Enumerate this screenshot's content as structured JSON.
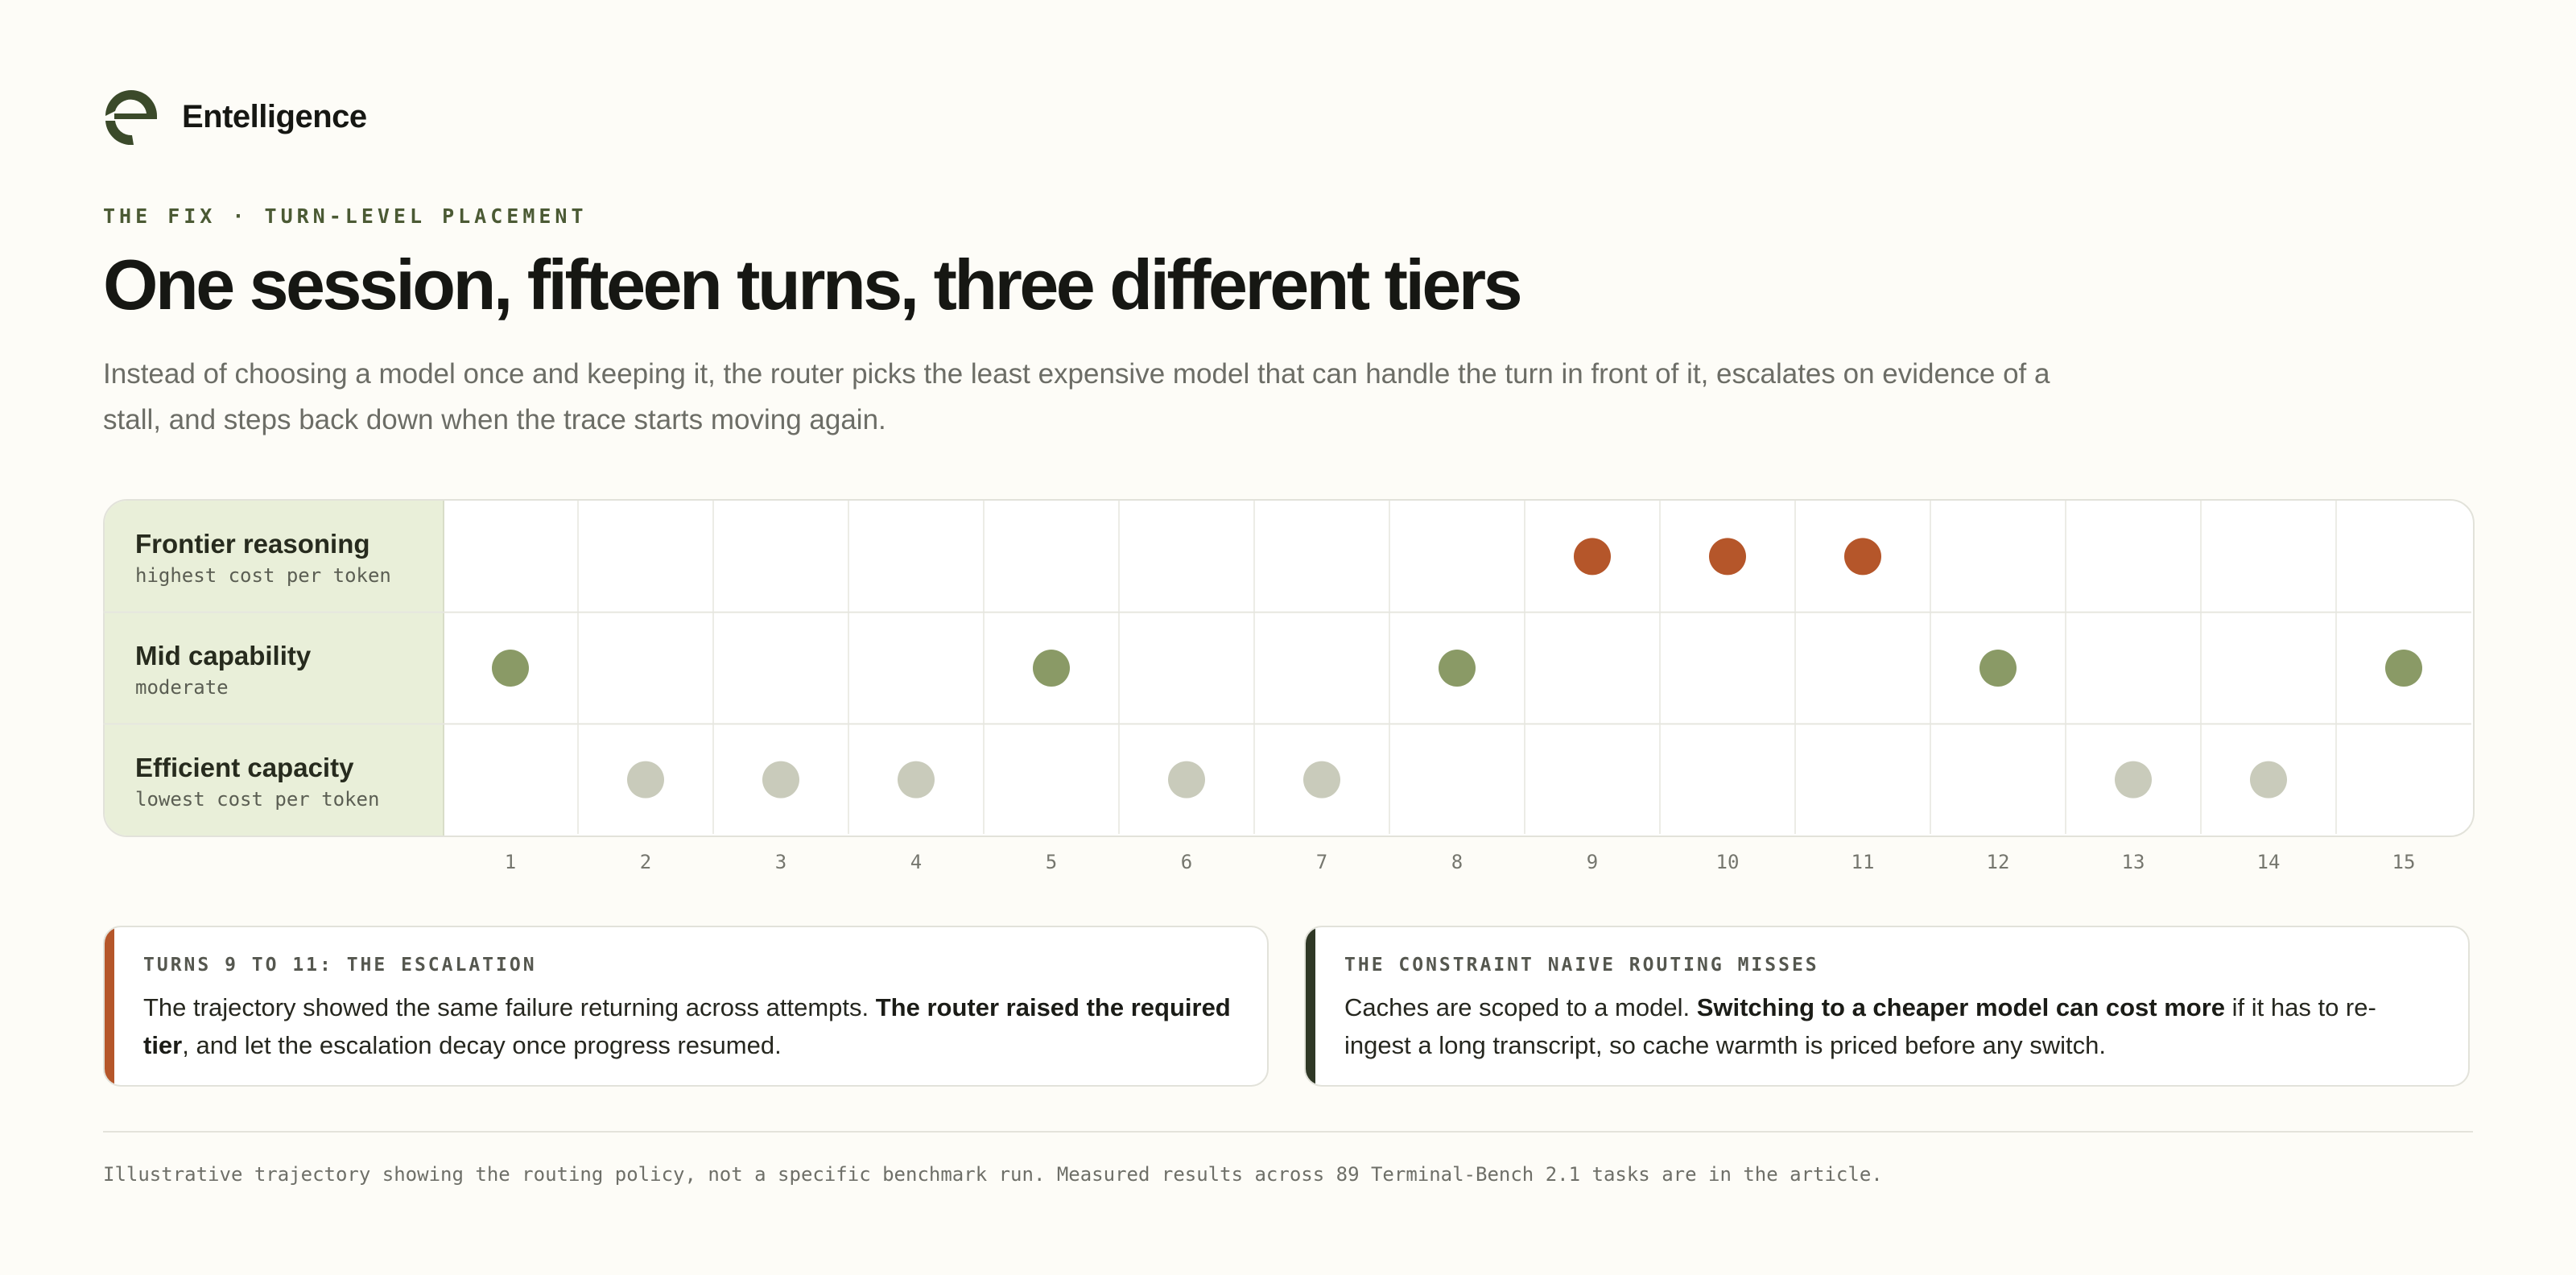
{
  "brand": {
    "name": "Entelligence",
    "logo_icon": "entelligence-e-logo-icon",
    "logo_color": "#3b4a2a"
  },
  "eyebrow": "THE FIX · TURN-LEVEL PLACEMENT",
  "title": "One session, fifteen turns, three different tiers",
  "subtitle": "Instead of choosing a model once and keeping it, the router picks the least expensive model that can handle the turn in front of it, escalates on evidence of a stall, and steps back down when the trace starts moving again.",
  "chart_data": {
    "type": "scatter",
    "title": "",
    "xlabel": "",
    "ylabel": "",
    "x": [
      1,
      2,
      3,
      4,
      5,
      6,
      7,
      8,
      9,
      10,
      11,
      12,
      13,
      14,
      15
    ],
    "tiers": [
      {
        "name": "Frontier reasoning",
        "description": "highest cost per token",
        "color": "#b5562a"
      },
      {
        "name": "Mid capability",
        "description": "moderate",
        "color": "#8a9a66"
      },
      {
        "name": "Efficient capacity",
        "description": "lowest cost per token",
        "color": "#c9cbbb"
      }
    ],
    "turn_tier": [
      "Mid capability",
      "Efficient capacity",
      "Efficient capacity",
      "Efficient capacity",
      "Mid capability",
      "Efficient capacity",
      "Efficient capacity",
      "Mid capability",
      "Frontier reasoning",
      "Frontier reasoning",
      "Frontier reasoning",
      "Mid capability",
      "Efficient capacity",
      "Efficient capacity",
      "Mid capability"
    ],
    "grid": true,
    "legend": "none"
  },
  "cards": {
    "left": {
      "title": "TURNS 9 TO 11: THE ESCALATION",
      "text_1": "The trajectory showed the same failure returning across attempts. ",
      "bold": "The router raised the required tier",
      "text_2": ", and let the escalation decay once progress resumed.",
      "accent": "#b5562a"
    },
    "right": {
      "title": "THE CONSTRAINT NAIVE ROUTING MISSES",
      "text_1": "Caches are scoped to a model. ",
      "bold": "Switching to a cheaper model can cost more",
      "text_2": " if it has to re-ingest a long transcript, so cache warmth is priced before any switch.",
      "accent": "#2f3826"
    }
  },
  "footnote": "Illustrative trajectory showing the routing policy, not a specific benchmark run. Measured results across 89 Terminal-Bench 2.1 tasks are in the article."
}
